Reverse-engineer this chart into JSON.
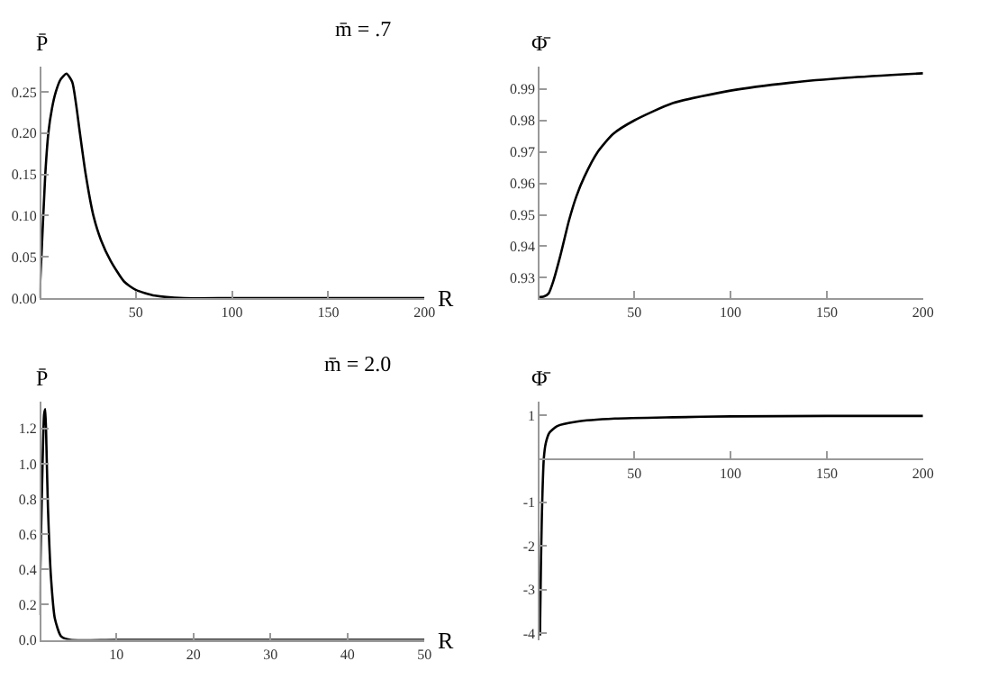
{
  "chart_data": [
    {
      "type": "line",
      "title": "m̄ = .7",
      "xlabel": "R",
      "ylabel": "P̄",
      "line_style": "solid",
      "marker": "none",
      "xlim": [
        0,
        200
      ],
      "ylim": [
        0,
        0.28
      ],
      "xticks": [
        50,
        100,
        150,
        200
      ],
      "yticks": [
        {
          "value": 0,
          "label": "0.00"
        },
        0.05,
        {
          "value": 0.1,
          "label": "0.10"
        },
        0.15,
        {
          "value": 0.2,
          "label": "0.20"
        },
        0.25
      ],
      "series": [
        {
          "color": "#000000",
          "x": [
            0,
            1,
            3,
            4.6,
            6.5,
            8.5,
            11,
            14,
            17,
            19,
            21,
            24,
            28,
            32,
            37,
            44,
            50,
            60,
            75,
            100,
            150,
            200
          ],
          "values": [
            0,
            0.05,
            0.15,
            0.2,
            0.23,
            0.25,
            0.265,
            0.272,
            0.262,
            0.235,
            0.2,
            0.15,
            0.1,
            0.07,
            0.045,
            0.02,
            0.01,
            0.003,
            0,
            0,
            0,
            0
          ]
        }
      ]
    },
    {
      "type": "line",
      "ylabel": "Φ̄",
      "line_style": "solid",
      "marker": "none",
      "xlim": [
        0,
        200
      ],
      "ylim": [
        0.9235,
        0.997
      ],
      "xticks": [
        50,
        100,
        150,
        200
      ],
      "yticks": [
        0.93,
        0.94,
        0.95,
        0.96,
        0.97,
        0.98,
        0.99
      ],
      "series": [
        {
          "color": "#000000",
          "x": [
            0,
            3,
            5.5,
            8,
            11.6,
            16,
            20,
            24,
            31,
            39,
            50,
            70,
            100,
            131,
            161,
            200
          ],
          "values": [
            0.9238,
            0.924,
            0.925,
            0.929,
            0.937,
            0.948,
            0.956,
            0.962,
            0.97,
            0.9757,
            0.98,
            0.9855,
            0.9895,
            0.992,
            0.9936,
            0.995
          ]
        }
      ]
    },
    {
      "type": "line",
      "title": "m̄ = 2.0",
      "xlabel": "R",
      "ylabel": "P̄",
      "line_style": "solid",
      "marker": "none",
      "xlim": [
        0,
        50
      ],
      "ylim": [
        0,
        1.35
      ],
      "xticks": [
        10,
        20,
        30,
        40,
        50
      ],
      "yticks": [
        {
          "value": 0,
          "label": "0.0"
        },
        0.2,
        0.4,
        0.6,
        0.8,
        {
          "value": 1,
          "label": "1.0"
        },
        1.2
      ],
      "series": [
        {
          "color": "#000000",
          "x": [
            0,
            0.2,
            0.4,
            0.6,
            0.75,
            0.9,
            1.1,
            1.5,
            2,
            2.8,
            4,
            10,
            50
          ],
          "values": [
            0.14,
            0.6,
            1.0,
            1.28,
            1.31,
            1.1,
            0.75,
            0.35,
            0.12,
            0.02,
            0,
            0,
            0
          ]
        }
      ]
    },
    {
      "type": "line",
      "ylabel": "Φ̄",
      "line_style": "solid",
      "marker": "none",
      "xlim": [
        0,
        200
      ],
      "ylim": [
        -4.15,
        1.3
      ],
      "xticks": [
        50,
        100,
        150,
        200
      ],
      "yticks": [
        -4,
        -3,
        -2,
        -1,
        1
      ],
      "series": [
        {
          "color": "#000000",
          "x": [
            1,
            1.5,
            2,
            3,
            4,
            6,
            10,
            20,
            40,
            70,
            100,
            150,
            200
          ],
          "values": [
            -4.05,
            -2.5,
            -1.3,
            0,
            0.35,
            0.6,
            0.75,
            0.85,
            0.92,
            0.95,
            0.97,
            0.98,
            0.98
          ]
        }
      ]
    }
  ]
}
